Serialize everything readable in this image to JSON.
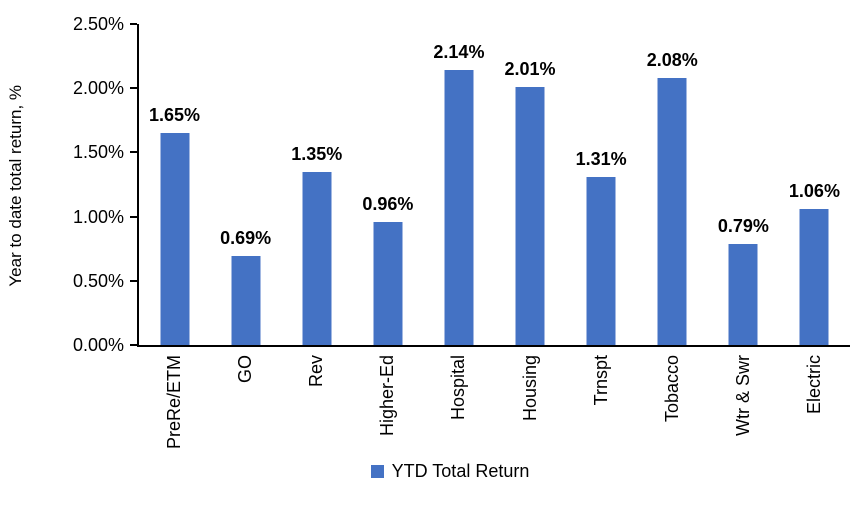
{
  "chart_data": {
    "type": "bar",
    "title": "",
    "xlabel": "",
    "ylabel": "Year to date total return, %",
    "categories": [
      "PreRe/ETM",
      "GO",
      "Rev",
      "Higher-Ed",
      "Hospital",
      "Housing",
      "Trnspt",
      "Tobacco",
      "Wtr & Swr",
      "Electric"
    ],
    "values": [
      1.65,
      0.69,
      1.35,
      0.96,
      2.14,
      2.01,
      1.31,
      2.08,
      0.79,
      1.06
    ],
    "bar_labels": [
      "1.65%",
      "0.69%",
      "1.35%",
      "0.96%",
      "2.14%",
      "2.01%",
      "1.31%",
      "2.08%",
      "0.79%",
      "1.06%"
    ],
    "ylim": [
      0,
      2.5
    ],
    "yticks": [
      "0.00%",
      "0.50%",
      "1.00%",
      "1.50%",
      "2.00%",
      "2.50%"
    ],
    "ytick_values": [
      0,
      0.5,
      1.0,
      1.5,
      2.0,
      2.5
    ],
    "grid": false,
    "legend_position": "bottom",
    "series_name": "YTD Total Return",
    "bar_color": "#4472C4",
    "axis_color": "#000000",
    "label_color": "#000000"
  }
}
